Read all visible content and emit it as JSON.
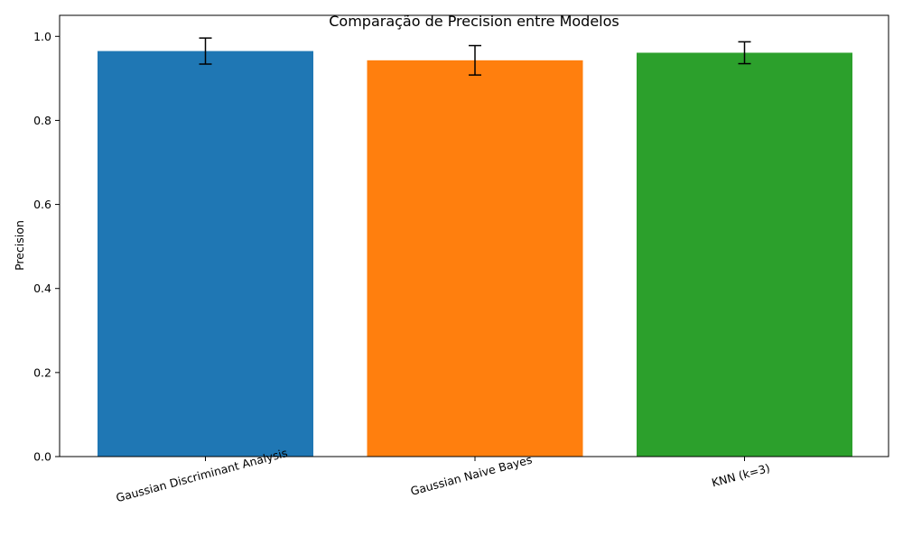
{
  "chart_data": {
    "type": "bar",
    "title": "Comparação de Precision entre Modelos",
    "xlabel": "",
    "ylabel": "Precision",
    "categories": [
      "Gaussian Discriminant Analysis",
      "Gaussian Naive Bayes",
      "KNN (k=3)"
    ],
    "values": [
      0.965,
      0.943,
      0.961
    ],
    "errors": [
      0.031,
      0.035,
      0.026
    ],
    "colors": [
      "#1f77b4",
      "#ff7f0e",
      "#2ca02c"
    ],
    "ylim": [
      0,
      1.05
    ],
    "yticks": [
      0.0,
      0.2,
      0.4,
      0.6,
      0.8,
      1.0
    ],
    "ytick_labels": [
      "0.0",
      "0.2",
      "0.4",
      "0.6",
      "0.8",
      "1.0"
    ],
    "grid": false,
    "legend": "none"
  }
}
